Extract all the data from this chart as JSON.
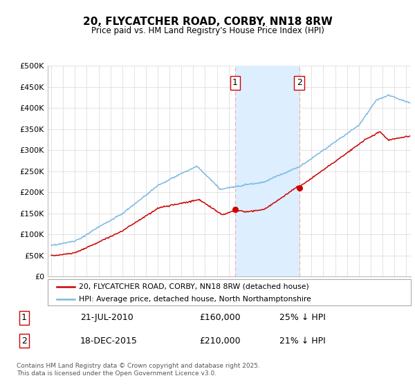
{
  "title": "20, FLYCATCHER ROAD, CORBY, NN18 8RW",
  "subtitle": "Price paid vs. HM Land Registry's House Price Index (HPI)",
  "hpi_color": "#7bb8e0",
  "price_color": "#cc0000",
  "vline_color": "#ffaaaa",
  "highlight_color": "#ddeeff",
  "ylim": [
    0,
    500000
  ],
  "yticks": [
    0,
    50000,
    100000,
    150000,
    200000,
    250000,
    300000,
    350000,
    400000,
    450000,
    500000
  ],
  "ytick_labels": [
    "£0",
    "£50K",
    "£100K",
    "£150K",
    "£200K",
    "£250K",
    "£300K",
    "£350K",
    "£400K",
    "£450K",
    "£500K"
  ],
  "xlim_start": 1994.7,
  "xlim_end": 2025.4,
  "sale1_year": 2010.55,
  "sale1_price": 160000,
  "sale2_year": 2015.97,
  "sale2_price": 210000,
  "sale1_label": "1",
  "sale2_label": "2",
  "legend_line1": "20, FLYCATCHER ROAD, CORBY, NN18 8RW (detached house)",
  "legend_line2": "HPI: Average price, detached house, North Northamptonshire",
  "table_label1": "1",
  "table_date1": "21-JUL-2010",
  "table_price1": "£160,000",
  "table_change1": "25% ↓ HPI",
  "table_label2": "2",
  "table_date2": "18-DEC-2015",
  "table_price2": "£210,000",
  "table_change2": "21% ↓ HPI",
  "footer": "Contains HM Land Registry data © Crown copyright and database right 2025.\nThis data is licensed under the Open Government Licence v3.0."
}
